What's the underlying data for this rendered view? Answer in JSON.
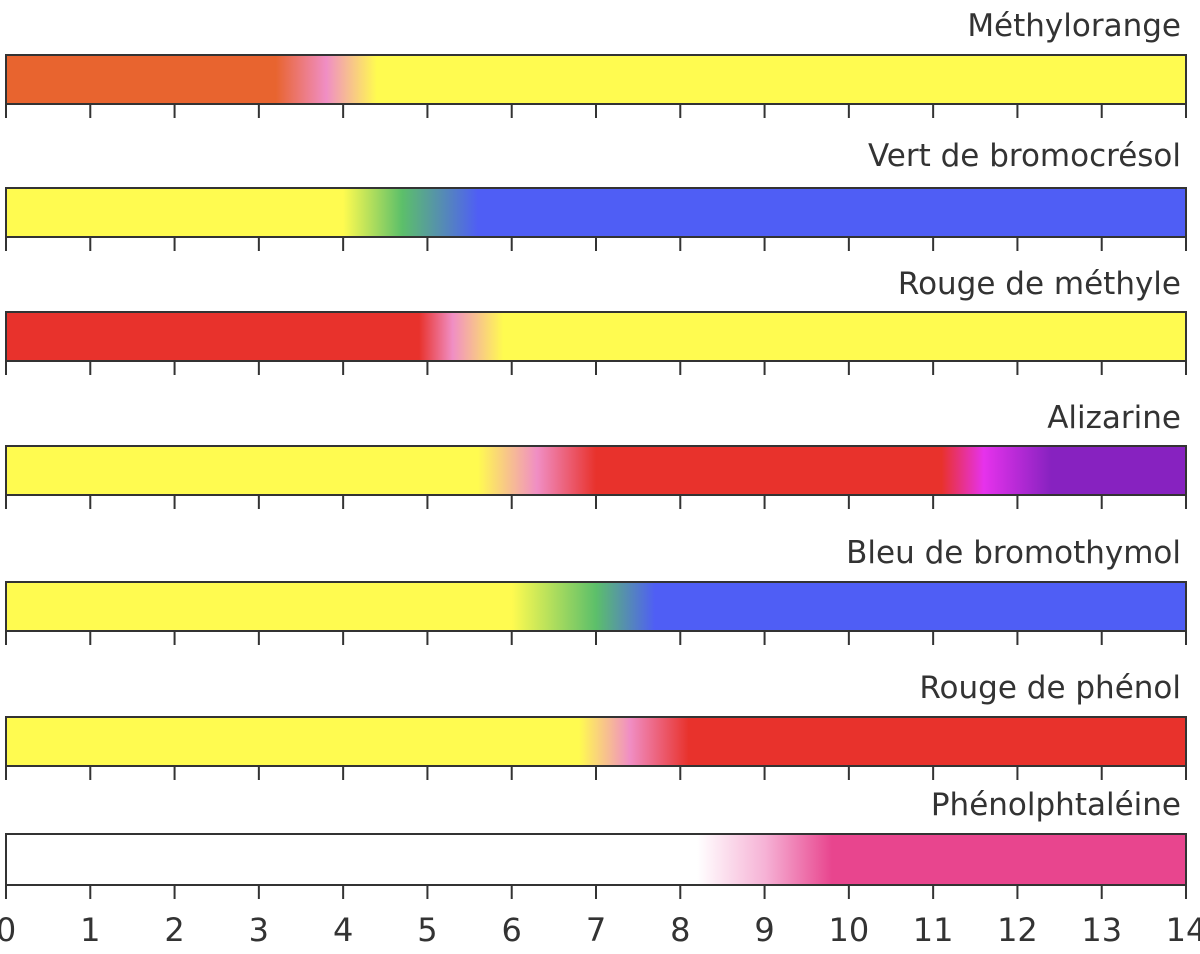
{
  "chart_data": {
    "type": "heatmap",
    "x_range": [
      0,
      14
    ],
    "x_ticks": [
      "0",
      "1",
      "2",
      "3",
      "4",
      "5",
      "6",
      "7",
      "8",
      "9",
      "10",
      "11",
      "12",
      "13",
      "14"
    ],
    "grid": false,
    "indicators": [
      {
        "name": "Méthylorange",
        "stops": [
          {
            "ph": 0,
            "color": "#e8642f"
          },
          {
            "ph": 3.2,
            "color": "#e8642f"
          },
          {
            "ph": 3.8,
            "color": "#f08ec4"
          },
          {
            "ph": 4.4,
            "color": "#fffb50"
          },
          {
            "ph": 14,
            "color": "#fffb50"
          }
        ]
      },
      {
        "name": "Vert de bromocrésol",
        "stops": [
          {
            "ph": 0,
            "color": "#fffb50"
          },
          {
            "ph": 4.0,
            "color": "#fffb50"
          },
          {
            "ph": 4.7,
            "color": "#5cbf6a"
          },
          {
            "ph": 5.6,
            "color": "#4f5ef5"
          },
          {
            "ph": 14,
            "color": "#4f5ef5"
          }
        ]
      },
      {
        "name": "Rouge de méthyle",
        "stops": [
          {
            "ph": 0,
            "color": "#e8322c"
          },
          {
            "ph": 4.9,
            "color": "#e8322c"
          },
          {
            "ph": 5.3,
            "color": "#f08ec4"
          },
          {
            "ph": 5.9,
            "color": "#fffb50"
          },
          {
            "ph": 14,
            "color": "#fffb50"
          }
        ]
      },
      {
        "name": "Alizarine",
        "stops": [
          {
            "ph": 0,
            "color": "#fffb50"
          },
          {
            "ph": 5.6,
            "color": "#fffb50"
          },
          {
            "ph": 6.3,
            "color": "#f08ec4"
          },
          {
            "ph": 7.0,
            "color": "#e8322c"
          },
          {
            "ph": 11.1,
            "color": "#e8322c"
          },
          {
            "ph": 11.6,
            "color": "#e632ec"
          },
          {
            "ph": 12.4,
            "color": "#8722c0"
          },
          {
            "ph": 14,
            "color": "#8722c0"
          }
        ]
      },
      {
        "name": "Bleu de bromothymol",
        "stops": [
          {
            "ph": 0,
            "color": "#fffb50"
          },
          {
            "ph": 6.0,
            "color": "#fffb50"
          },
          {
            "ph": 7.0,
            "color": "#5cbf6a"
          },
          {
            "ph": 7.7,
            "color": "#4f5ef5"
          },
          {
            "ph": 14,
            "color": "#4f5ef5"
          }
        ]
      },
      {
        "name": "Rouge de phénol",
        "stops": [
          {
            "ph": 0,
            "color": "#fffb50"
          },
          {
            "ph": 6.8,
            "color": "#fffb50"
          },
          {
            "ph": 7.4,
            "color": "#f08ec4"
          },
          {
            "ph": 8.1,
            "color": "#e8322c"
          },
          {
            "ph": 14,
            "color": "#e8322c"
          }
        ]
      },
      {
        "name": "Phénolphtaléine",
        "stops": [
          {
            "ph": 0,
            "color": "#ffffff"
          },
          {
            "ph": 8.2,
            "color": "#ffffff"
          },
          {
            "ph": 9.0,
            "color": "#f6b3d6"
          },
          {
            "ph": 9.8,
            "color": "#e8458e"
          },
          {
            "ph": 14,
            "color": "#e8458e"
          }
        ]
      }
    ]
  }
}
